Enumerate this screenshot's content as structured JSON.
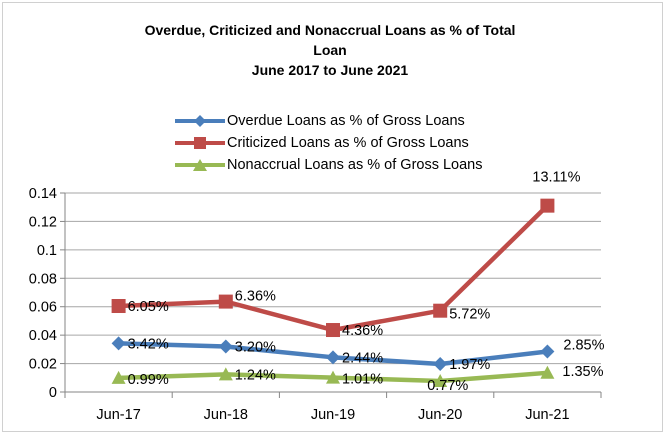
{
  "chart_data": {
    "type": "line",
    "title_lines": [
      "Overdue, Criticized and Nonaccrual Loans as % of Total",
      "Loan",
      "June  2017 to June 2021"
    ],
    "categories": [
      "Jun-17",
      "Jun-18",
      "Jun-19",
      "Jun-20",
      "Jun-21"
    ],
    "y_ticks": [
      "0",
      "0.02",
      "0.04",
      "0.06",
      "0.08",
      "0.1",
      "0.12",
      "0.14"
    ],
    "ylim": [
      0,
      0.14
    ],
    "legend_position": "top",
    "grid": true,
    "series": [
      {
        "name": "Overdue Loans as % of Gross Loans",
        "color": "#4a7ebb",
        "marker": "diamond",
        "values": [
          0.0342,
          0.032,
          0.0244,
          0.0197,
          0.0285
        ],
        "labels": [
          "3.42%",
          "3.20%",
          "2.44%",
          "1.97%",
          "2.85%"
        ]
      },
      {
        "name": "Criticized Loans as % of Gross Loans",
        "color": "#be4b48",
        "marker": "square",
        "values": [
          0.0605,
          0.0636,
          0.0436,
          0.0572,
          0.1311
        ],
        "labels": [
          "6.05%",
          "6.36%",
          "4.36%",
          "5.72%",
          "13.11%"
        ]
      },
      {
        "name": "Nonaccrual Loans as % of Gross Loans",
        "color": "#98b954",
        "marker": "triangle",
        "values": [
          0.0099,
          0.0124,
          0.0101,
          0.0077,
          0.0135
        ],
        "labels": [
          "0.99%",
          "1.24%",
          "1.01%",
          "0.77%",
          "1.35%"
        ]
      }
    ]
  }
}
